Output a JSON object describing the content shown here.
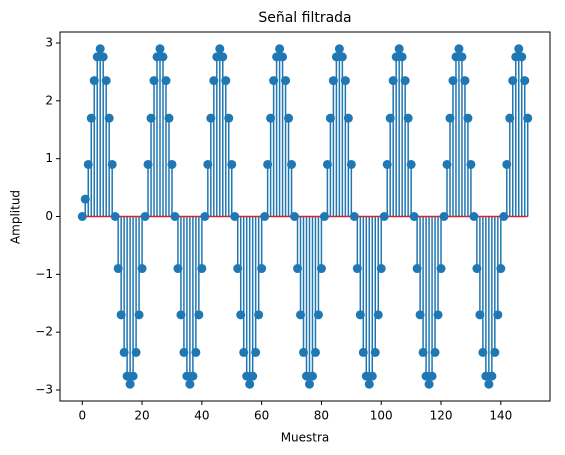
{
  "chart_data": {
    "type": "stem",
    "title": "Señal filtrada",
    "x_label": "Muestra",
    "y_label": "Amplitud",
    "x": [
      0,
      1,
      2,
      3,
      4,
      5,
      6,
      7,
      8,
      9,
      10,
      11,
      12,
      13,
      14,
      15,
      16,
      17,
      18,
      19,
      20,
      21,
      22,
      23,
      24,
      25,
      26,
      27,
      28,
      29,
      30,
      31,
      32,
      33,
      34,
      35,
      36,
      37,
      38,
      39,
      40,
      41,
      42,
      43,
      44,
      45,
      46,
      47,
      48,
      49,
      50,
      51,
      52,
      53,
      54,
      55,
      56,
      57,
      58,
      59,
      60,
      61,
      62,
      63,
      64,
      65,
      66,
      67,
      68,
      69,
      70,
      71,
      72,
      73,
      74,
      75,
      76,
      77,
      78,
      79,
      80,
      81,
      82,
      83,
      84,
      85,
      86,
      87,
      88,
      89,
      90,
      91,
      92,
      93,
      94,
      95,
      96,
      97,
      98,
      99,
      100,
      101,
      102,
      103,
      104,
      105,
      106,
      107,
      108,
      109,
      110,
      111,
      112,
      113,
      114,
      115,
      116,
      117,
      118,
      119,
      120,
      121,
      122,
      123,
      124,
      125,
      126,
      127,
      128,
      129,
      130,
      131,
      132,
      133,
      134,
      135,
      136,
      137,
      138,
      139,
      140,
      141,
      142,
      143,
      144,
      145,
      146,
      147,
      148,
      149
    ],
    "values": [
      0,
      0.3,
      0.9,
      1.7,
      2.35,
      2.76,
      2.9,
      2.76,
      2.35,
      1.7,
      0.9,
      0,
      -0.9,
      -1.7,
      -2.35,
      -2.76,
      -2.9,
      -2.76,
      -2.35,
      -1.7,
      -0.9,
      0,
      0.9,
      1.7,
      2.35,
      2.76,
      2.9,
      2.76,
      2.35,
      1.7,
      0.9,
      0,
      -0.9,
      -1.7,
      -2.35,
      -2.76,
      -2.9,
      -2.76,
      -2.35,
      -1.7,
      -0.9,
      0,
      0.9,
      1.7,
      2.35,
      2.76,
      2.9,
      2.76,
      2.35,
      1.7,
      0.9,
      0,
      -0.9,
      -1.7,
      -2.35,
      -2.76,
      -2.9,
      -2.76,
      -2.35,
      -1.7,
      -0.9,
      0,
      0.9,
      1.7,
      2.35,
      2.76,
      2.9,
      2.76,
      2.35,
      1.7,
      0.9,
      0,
      -0.9,
      -1.7,
      -2.35,
      -2.76,
      -2.9,
      -2.76,
      -2.35,
      -1.7,
      -0.9,
      0,
      0.9,
      1.7,
      2.35,
      2.76,
      2.9,
      2.76,
      2.35,
      1.7,
      0.9,
      0,
      -0.9,
      -1.7,
      -2.35,
      -2.76,
      -2.9,
      -2.76,
      -2.35,
      -1.7,
      -0.9,
      0,
      0.9,
      1.7,
      2.35,
      2.76,
      2.9,
      2.76,
      2.35,
      1.7,
      0.9,
      0,
      -0.9,
      -1.7,
      -2.35,
      -2.76,
      -2.9,
      -2.76,
      -2.35,
      -1.7,
      -0.9,
      0,
      0.9,
      1.7,
      2.35,
      2.76,
      2.9,
      2.76,
      2.35,
      1.7,
      0.9,
      0,
      -0.9,
      -1.7,
      -2.35,
      -2.76,
      -2.9,
      -2.76,
      -2.35,
      -1.7,
      -0.9,
      0,
      0.9,
      1.7,
      2.35,
      2.76,
      2.9,
      2.76,
      2.35,
      1.7
    ],
    "color": "#1f77b4",
    "baseline_color": "#d62728",
    "xlim": [
      -7.45,
      156.45
    ],
    "xticks": [
      0,
      20,
      40,
      60,
      80,
      100,
      120,
      140
    ],
    "ylim": [
      -3.19,
      3.19
    ],
    "yticks": [
      {
        "value": -3,
        "label": "−3"
      },
      {
        "value": -2,
        "label": "−2"
      },
      {
        "value": -1,
        "label": "−1"
      },
      0,
      1,
      2,
      3
    ],
    "grid": false
  }
}
